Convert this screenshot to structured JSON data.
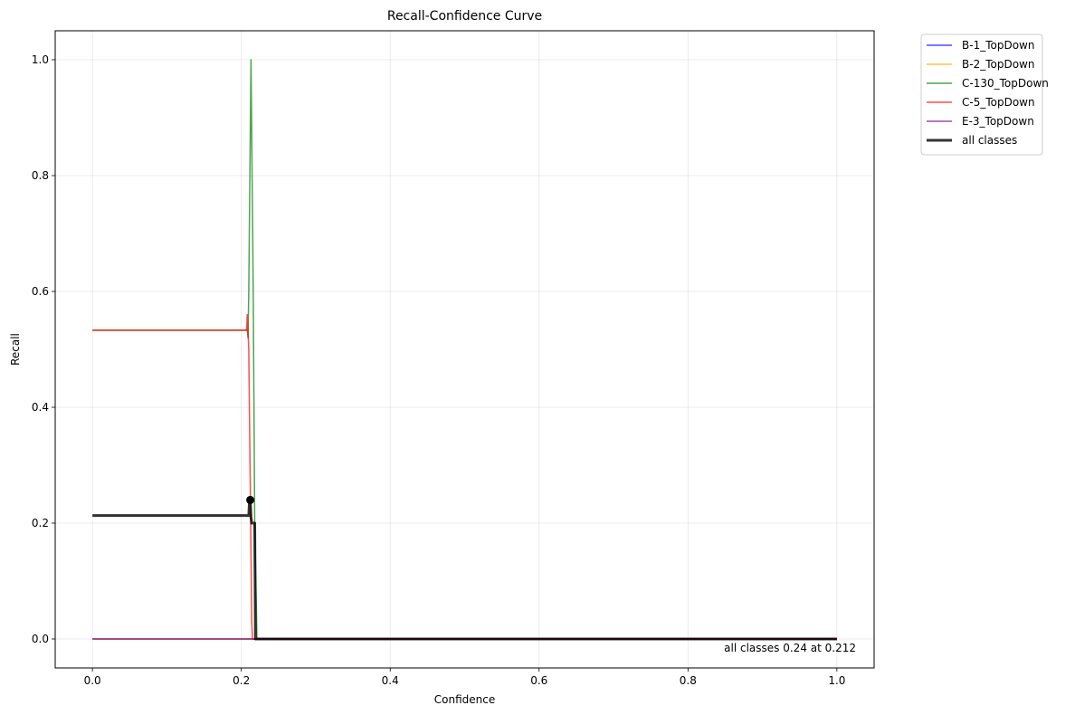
{
  "chart_data": {
    "type": "line",
    "title": "Recall-Confidence Curve",
    "xlabel": "Confidence",
    "ylabel": "Recall",
    "xlim": [
      -0.05,
      1.05
    ],
    "ylim": [
      -0.05,
      1.05
    ],
    "xticks": [
      0.0,
      0.2,
      0.4,
      0.6,
      0.8,
      1.0
    ],
    "xtick_labels": [
      "0.0",
      "0.2",
      "0.4",
      "0.6",
      "0.8",
      "1.0"
    ],
    "yticks": [
      0.0,
      0.2,
      0.4,
      0.6,
      0.8,
      1.0
    ],
    "ytick_labels": [
      "0.0",
      "0.2",
      "0.4",
      "0.6",
      "0.8",
      "1.0"
    ],
    "grid": true,
    "legend_position": "outside top-right",
    "series": [
      {
        "name": "B-1_TopDown",
        "color": "#0000ff",
        "x": [
          0.0,
          0.21,
          0.215,
          1.0
        ],
        "y": [
          0.0,
          0.0,
          0.0,
          0.0
        ]
      },
      {
        "name": "B-2_TopDown",
        "color": "#ffa500",
        "x": [
          0.0,
          0.21,
          0.215,
          1.0
        ],
        "y": [
          0.0,
          0.0,
          0.0,
          0.0
        ]
      },
      {
        "name": "C-130_TopDown",
        "color": "#008000",
        "x": [
          0.0,
          0.208,
          0.209,
          0.21,
          0.213,
          0.216,
          0.218,
          0.221,
          1.0
        ],
        "y": [
          0.533,
          0.533,
          0.52,
          0.6,
          1.0,
          0.6,
          0.2,
          0.0,
          0.0
        ]
      },
      {
        "name": "C-5_TopDown",
        "color": "#ff0000",
        "x": [
          0.0,
          0.207,
          0.208,
          0.209,
          0.21,
          0.214,
          0.215,
          1.0
        ],
        "y": [
          0.533,
          0.533,
          0.56,
          0.53,
          0.5,
          0.03,
          0.0,
          0.0
        ]
      },
      {
        "name": "E-3_TopDown",
        "color": "#800080",
        "x": [
          0.0,
          1.0
        ],
        "y": [
          0.0,
          0.0
        ]
      },
      {
        "name": "all classes",
        "color": "#000000",
        "width": 3,
        "x": [
          0.0,
          0.21,
          0.211,
          0.212,
          0.213,
          0.214,
          0.215,
          0.218,
          0.219,
          0.22,
          1.0
        ],
        "y": [
          0.213,
          0.213,
          0.24,
          0.24,
          0.21,
          0.2,
          0.2,
          0.2,
          0.0,
          0.0,
          0.0
        ]
      }
    ],
    "marker": {
      "x": 0.212,
      "y": 0.24
    },
    "annotation": "all classes 0.24 at 0.212"
  }
}
